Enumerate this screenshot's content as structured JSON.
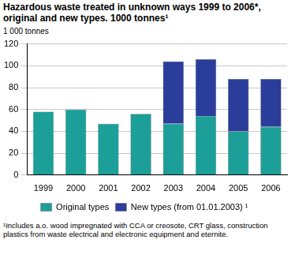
{
  "chart_data": {
    "type": "bar",
    "title": "Hazardous waste treated in unknown ways 1999 to 2006*, original and new types. 1000 tonnes¹",
    "ylabel": "1 000 tonnes",
    "categories": [
      "1999",
      "2000",
      "2001",
      "2002",
      "2003",
      "2004",
      "2005",
      "2006"
    ],
    "series": [
      {
        "name": "Original types",
        "color": "#1c9f98",
        "values": [
          58,
          60,
          47,
          56,
          47,
          54,
          40,
          44
        ]
      },
      {
        "name": "New types (from 01.01.2003) ¹",
        "color": "#2a3d9a",
        "values": [
          null,
          null,
          null,
          null,
          57,
          52,
          48,
          44
        ]
      }
    ],
    "stacked": true,
    "ylim": [
      0,
      120
    ],
    "yticks": [
      0,
      20,
      40,
      60,
      80,
      100,
      120
    ],
    "grid": true,
    "legend": "bottom",
    "annotations": [
      "¹Includes a.o. wood impregnated with CCA or creosote, CRT glass, construction plastics from waste electrical and electronic equipment and eternite."
    ]
  }
}
